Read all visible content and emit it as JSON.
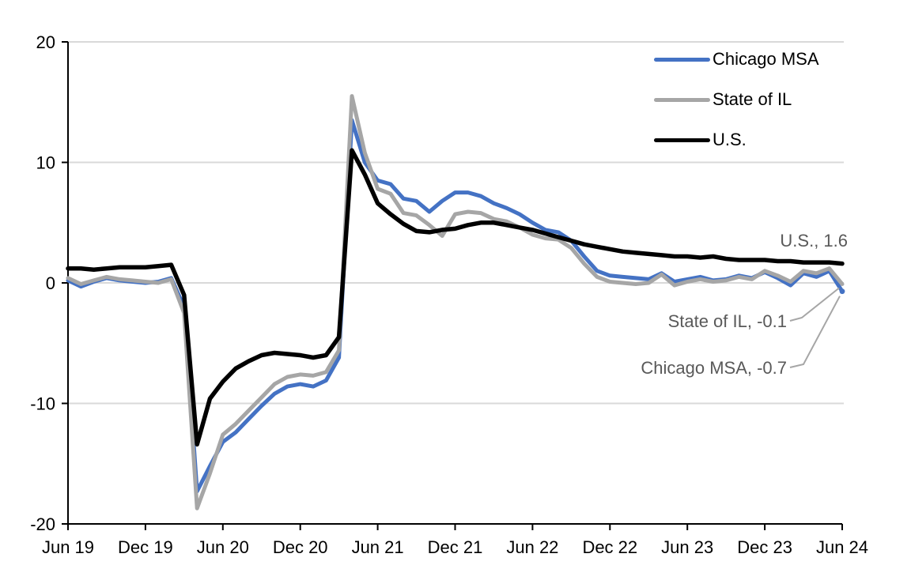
{
  "colors": {
    "background": "#FFFFFF",
    "gridline": "#D9D9D9",
    "axis": "#000000",
    "annotation_text": "#595959",
    "leader_line": "#A6A6A6",
    "chicago_blue": "#4472C4",
    "il_gray": "#A6A6A6",
    "us_black": "#000000"
  },
  "legend": {
    "items": [
      "Chicago MSA",
      "State of IL",
      "U.S."
    ]
  },
  "annotations": {
    "us": "U.S., 1.6",
    "il": "State of IL, -0.1",
    "chicago": "Chicago MSA, -0.7"
  },
  "chart_data": {
    "type": "line",
    "title": "",
    "xlabel": "",
    "ylabel": "",
    "ylim": [
      -20,
      20
    ],
    "grid": "horizontal",
    "legend_position": "top-right",
    "x_tick_labels": [
      "Jun 19",
      "Dec 19",
      "Jun 20",
      "Dec 20",
      "Jun 21",
      "Dec 21",
      "Jun 22",
      "Dec 22",
      "Jun 23",
      "Dec 23",
      "Jun 24"
    ],
    "x_tick_months": [
      0,
      6,
      12,
      18,
      24,
      30,
      36,
      42,
      48,
      54,
      60
    ],
    "y_tick_values": [
      20,
      10,
      0,
      -10,
      -20
    ],
    "y_tick_labels": [
      "20",
      "10",
      "0",
      "-10",
      "-20"
    ],
    "gridline_values": [
      20,
      10,
      0,
      -10
    ],
    "series": [
      {
        "name": "Chicago MSA",
        "color": "#4472C4",
        "end_value": -0.7,
        "end_label": "Chicago MSA, -0.7",
        "values": [
          0.2,
          -0.3,
          0.1,
          0.4,
          0.2,
          0.1,
          0.0,
          0.1,
          0.4,
          -2.0,
          -17.3,
          -15.2,
          -13.2,
          -12.4,
          -11.3,
          -10.2,
          -9.2,
          -8.6,
          -8.4,
          -8.6,
          -8.1,
          -6.2,
          13.5,
          10.0,
          8.5,
          8.2,
          7.0,
          6.8,
          5.9,
          6.8,
          7.5,
          7.5,
          7.2,
          6.6,
          6.2,
          5.7,
          5.0,
          4.4,
          4.2,
          3.5,
          2.2,
          1.0,
          0.6,
          0.5,
          0.4,
          0.3,
          0.8,
          0.1,
          0.3,
          0.5,
          0.2,
          0.3,
          0.6,
          0.4,
          0.9,
          0.4,
          -0.2,
          0.8,
          0.5,
          1.0,
          -0.7
        ]
      },
      {
        "name": "State of IL",
        "color": "#A6A6A6",
        "end_value": -0.1,
        "end_label": "State of IL, -0.1",
        "values": [
          0.4,
          -0.1,
          0.2,
          0.5,
          0.3,
          0.2,
          0.1,
          0.0,
          0.3,
          -2.5,
          -18.7,
          -15.8,
          -12.6,
          -11.7,
          -10.6,
          -9.5,
          -8.4,
          -7.8,
          -7.6,
          -7.7,
          -7.4,
          -5.6,
          15.5,
          10.8,
          7.8,
          7.4,
          5.8,
          5.6,
          4.8,
          3.9,
          5.7,
          5.9,
          5.8,
          5.3,
          5.1,
          4.6,
          4.0,
          3.7,
          3.6,
          2.9,
          1.6,
          0.5,
          0.1,
          0.0,
          -0.1,
          0.0,
          0.7,
          -0.2,
          0.1,
          0.3,
          0.1,
          0.2,
          0.5,
          0.3,
          1.0,
          0.6,
          0.1,
          1.0,
          0.8,
          1.2,
          -0.1
        ]
      },
      {
        "name": "U.S.",
        "color": "#000000",
        "end_value": 1.6,
        "end_label": "U.S., 1.6",
        "values": [
          1.2,
          1.2,
          1.1,
          1.2,
          1.3,
          1.3,
          1.3,
          1.4,
          1.5,
          -1.0,
          -13.4,
          -9.6,
          -8.2,
          -7.1,
          -6.5,
          -6.0,
          -5.8,
          -5.9,
          -6.0,
          -6.2,
          -6.0,
          -4.5,
          11.0,
          9.0,
          6.6,
          5.7,
          4.9,
          4.3,
          4.2,
          4.4,
          4.5,
          4.8,
          5.0,
          5.0,
          4.8,
          4.6,
          4.4,
          4.1,
          3.8,
          3.5,
          3.2,
          3.0,
          2.8,
          2.6,
          2.5,
          2.4,
          2.3,
          2.2,
          2.2,
          2.1,
          2.2,
          2.0,
          1.9,
          1.9,
          1.9,
          1.8,
          1.8,
          1.7,
          1.7,
          1.7,
          1.6
        ]
      }
    ]
  }
}
